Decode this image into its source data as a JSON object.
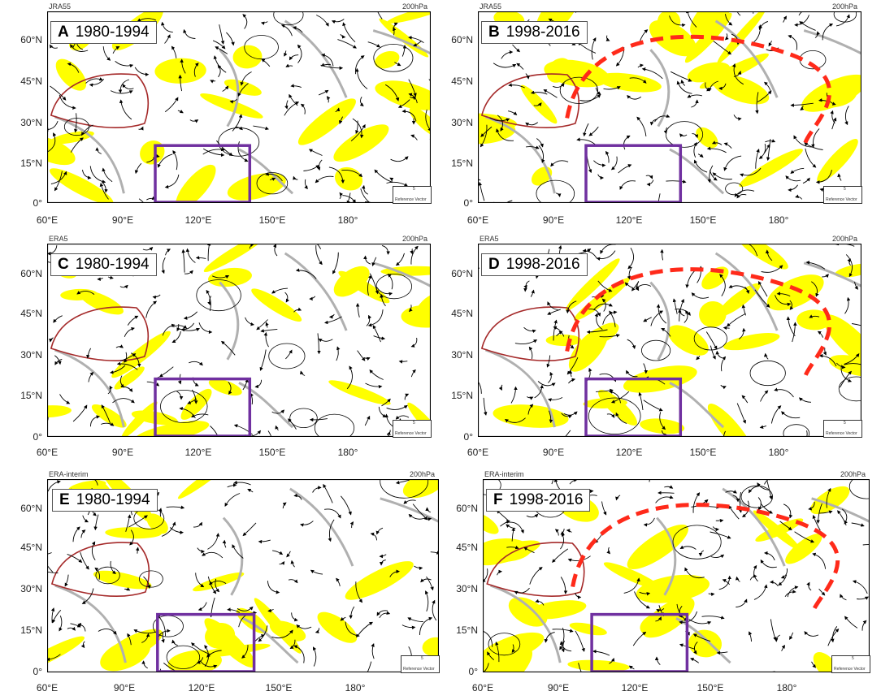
{
  "panels": [
    {
      "letter": "A",
      "period": "1980-1994",
      "dataset": "JRA55",
      "level": "200hPa",
      "arc": false
    },
    {
      "letter": "B",
      "period": "1998-2016",
      "dataset": "JRA55",
      "level": "200hPa",
      "arc": true
    },
    {
      "letter": "C",
      "period": "1980-1994",
      "dataset": "ERA5",
      "level": "200hPa",
      "arc": false
    },
    {
      "letter": "D",
      "period": "1998-2016",
      "dataset": "ERA5",
      "level": "200hPa",
      "arc": true
    },
    {
      "letter": "E",
      "period": "1980-1994",
      "dataset": "ERA-interim",
      "level": "200hPa",
      "arc": false
    },
    {
      "letter": "F",
      "period": "1998-2016",
      "dataset": "ERA-interim",
      "level": "200hPa",
      "arc": true
    }
  ],
  "axes": {
    "lat_labels": [
      "60°N",
      "45°N",
      "30°N",
      "15°N",
      "0°"
    ],
    "lon_labels": [
      "60°E",
      "90°E",
      "120°E",
      "150°E",
      "180°"
    ]
  },
  "reference_vector": {
    "label": "Reference Vector",
    "magnitude": "5"
  },
  "colors": {
    "significance_shading": "#ffff00",
    "box": "#7030a0",
    "arc": "#ff2a1a",
    "plateau": "#a52a2a",
    "coast": "#b0b0b0",
    "streamline": "#000000"
  },
  "region_box": {
    "lon": [
      100,
      135
    ],
    "lat": [
      0,
      21
    ]
  }
}
